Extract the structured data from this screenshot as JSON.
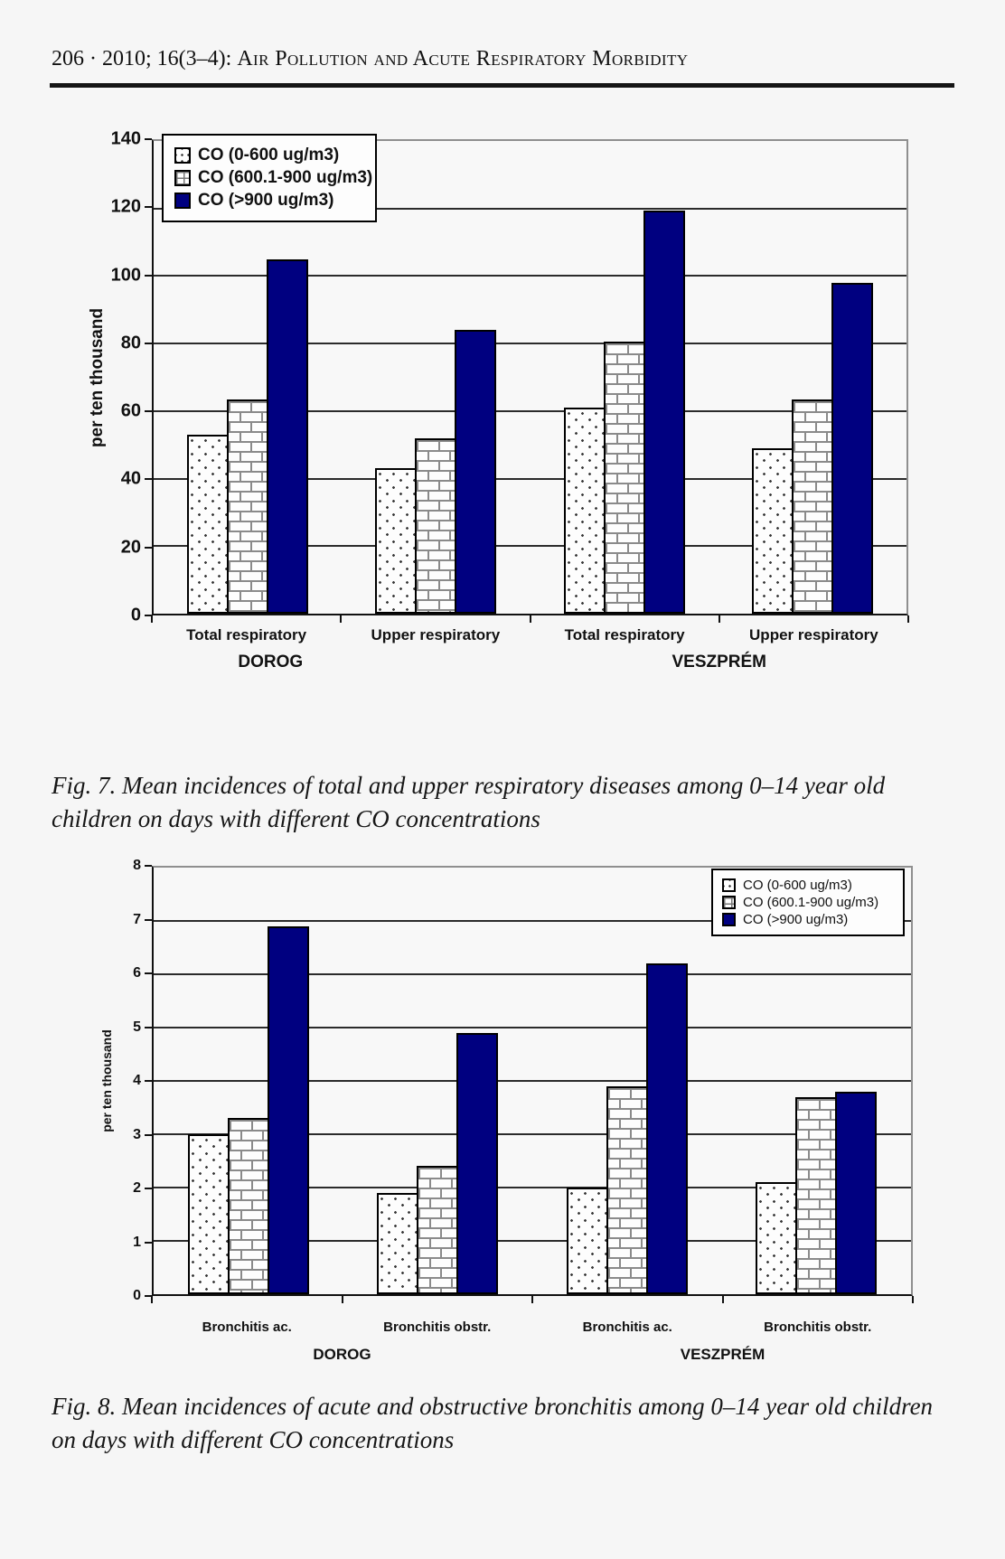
{
  "page": {
    "header": {
      "citation": "206 · 2010; 16(3–4):",
      "title": "Air Pollution and Acute Respiratory Morbidity"
    },
    "captions": {
      "fig7": "Fig. 7. Mean incidences of total and upper respiratory diseases among 0–14 year old children on days with different CO concentrations",
      "fig8": "Fig. 8. Mean incidences of acute and obstructive bronchitis among 0–14 year old children on days with different CO concentrations"
    }
  },
  "colors": {
    "bar_navy": "#000080",
    "pattern_line_gray": "#8a8a8a",
    "page_background": "#f6f6f6",
    "axis_black": "#111111"
  },
  "chart_data": [
    {
      "type": "bar",
      "figure": "Fig. 7",
      "title": "",
      "xlabel": "",
      "ylabel": "per ten thousand",
      "ylim": [
        0,
        140
      ],
      "yticks": [
        0,
        20,
        40,
        60,
        80,
        100,
        120,
        140
      ],
      "grid": true,
      "legend_position": "top-left",
      "categories": [
        "Total respiratory",
        "Upper respiratory",
        "Total respiratory",
        "Upper respiratory"
      ],
      "group_labels": [
        "DOROG",
        "VESZPRÉM"
      ],
      "series": [
        {
          "name": "CO (0-600 ug/m3)",
          "pattern": "dots",
          "values": [
            53,
            43,
            61,
            49
          ]
        },
        {
          "name": "CO (600.1-900 ug/m3)",
          "pattern": "brick",
          "values": [
            63.5,
            52,
            80.5,
            63.5
          ]
        },
        {
          "name": "CO (>900 ug/m3)",
          "pattern": "solid",
          "color": "#000080",
          "values": [
            105,
            84,
            119.5,
            98
          ]
        }
      ]
    },
    {
      "type": "bar",
      "figure": "Fig. 8",
      "title": "",
      "xlabel": "",
      "ylabel": "per ten thousand",
      "ylim": [
        0,
        8
      ],
      "yticks": [
        0,
        1,
        2,
        3,
        4,
        5,
        6,
        7,
        8
      ],
      "grid": true,
      "legend_position": "top-right",
      "categories": [
        "Bronchitis ac.",
        "Bronchitis obstr.",
        "Bronchitis ac.",
        "Bronchitis obstr."
      ],
      "group_labels": [
        "DOROG",
        "VESZPRÉM"
      ],
      "series": [
        {
          "name": "CO (0-600 ug/m3)",
          "pattern": "dots",
          "values": [
            3.0,
            1.9,
            2.0,
            2.1
          ]
        },
        {
          "name": "CO (600.1-900 ug/m3)",
          "pattern": "brick",
          "values": [
            3.3,
            2.4,
            3.9,
            3.7
          ]
        },
        {
          "name": "CO (>900 ug/m3)",
          "pattern": "solid",
          "color": "#000080",
          "values": [
            6.9,
            4.9,
            6.2,
            3.8
          ]
        }
      ]
    }
  ]
}
